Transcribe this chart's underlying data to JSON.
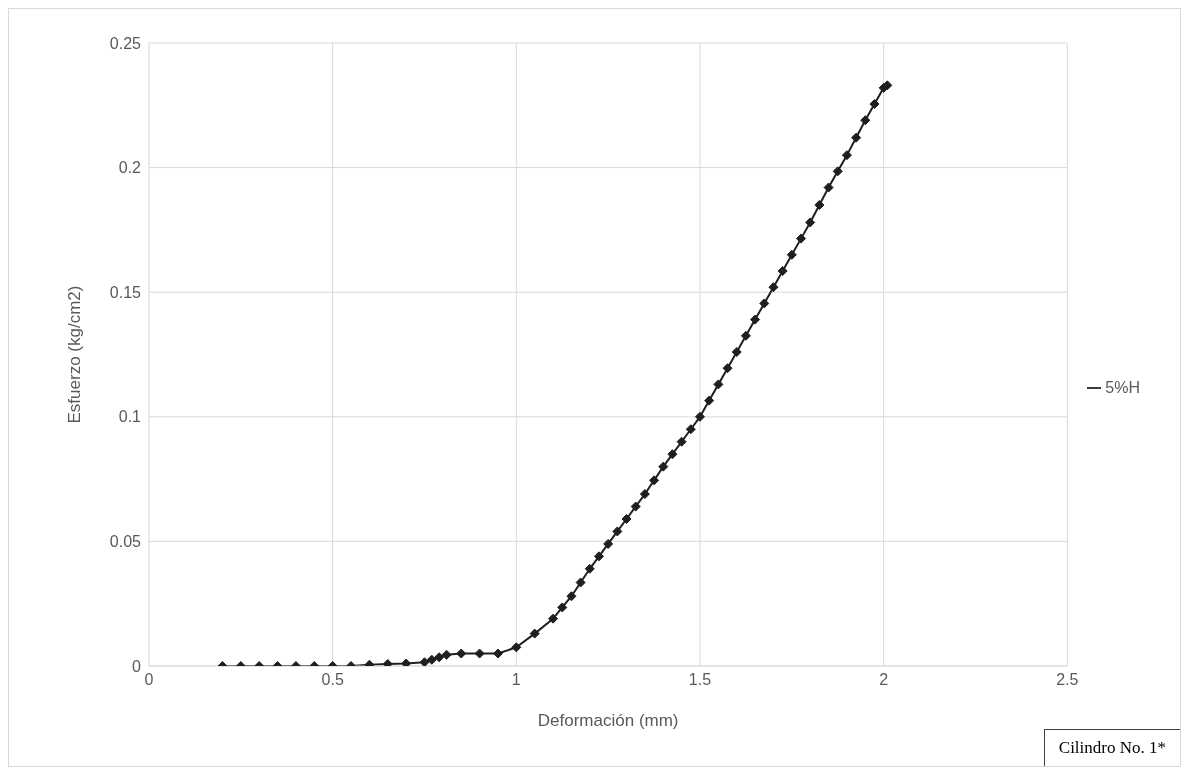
{
  "chart_data": {
    "type": "line",
    "xlabel": "Deformación (mm)",
    "ylabel": "Esfuerzo (kg/cm2)",
    "x": [
      0.2,
      0.25,
      0.3,
      0.35,
      0.4,
      0.45,
      0.5,
      0.55,
      0.6,
      0.65,
      0.7,
      0.75,
      0.77,
      0.79,
      0.81,
      0.85,
      0.9,
      0.95,
      1.0,
      1.05,
      1.1,
      1.125,
      1.15,
      1.175,
      1.2,
      1.225,
      1.25,
      1.275,
      1.3,
      1.325,
      1.35,
      1.375,
      1.4,
      1.425,
      1.45,
      1.475,
      1.5,
      1.525,
      1.55,
      1.575,
      1.6,
      1.625,
      1.65,
      1.675,
      1.7,
      1.725,
      1.75,
      1.775,
      1.8,
      1.825,
      1.85,
      1.875,
      1.9,
      1.925,
      1.95,
      1.975,
      2.0,
      2.01
    ],
    "series": [
      {
        "name": "5%H",
        "color": "#1f1f1f",
        "values": [
          0,
          0,
          0,
          0,
          0,
          0,
          0,
          0,
          0.0005,
          0.0008,
          0.001,
          0.0015,
          0.0025,
          0.0035,
          0.0045,
          0.005,
          0.005,
          0.005,
          0.0075,
          0.013,
          0.019,
          0.0235,
          0.028,
          0.0335,
          0.039,
          0.044,
          0.049,
          0.054,
          0.059,
          0.064,
          0.069,
          0.0745,
          0.08,
          0.085,
          0.09,
          0.095,
          0.1,
          0.1065,
          0.113,
          0.1195,
          0.126,
          0.1325,
          0.139,
          0.1455,
          0.152,
          0.1585,
          0.165,
          0.1715,
          0.178,
          0.185,
          0.192,
          0.1985,
          0.205,
          0.212,
          0.219,
          0.2255,
          0.232,
          0.233
        ]
      }
    ],
    "xlim": [
      0,
      2.5
    ],
    "xticks": [
      0,
      0.5,
      1,
      1.5,
      2,
      2.5
    ],
    "ylim": [
      0,
      0.25
    ],
    "yticks": [
      0,
      0.05,
      0.1,
      0.15,
      0.2,
      0.25
    ],
    "grid": true,
    "legend": "right",
    "marker": "diamond",
    "line_style": "solid",
    "annotations": [
      "Cilindro No. 1*"
    ]
  }
}
